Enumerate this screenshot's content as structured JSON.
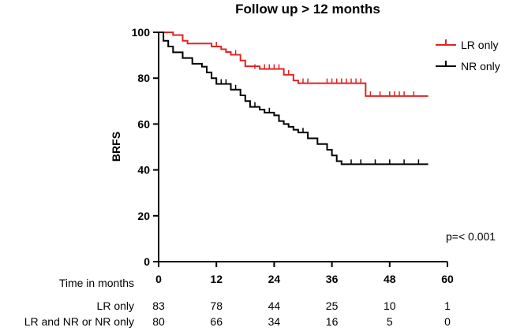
{
  "chart_data": {
    "type": "line",
    "subtype": "kaplan-meier",
    "title": "Follow up > 12 months",
    "xlabel": "Time in months",
    "ylabel": "BRFS",
    "xlim": [
      0,
      60
    ],
    "ylim": [
      0,
      100
    ],
    "xticks": [
      0,
      12,
      24,
      36,
      48,
      60
    ],
    "yticks": [
      0,
      20,
      40,
      60,
      80,
      100
    ],
    "annotation": "p=< 0.001",
    "legend_position": "top-right",
    "series": [
      {
        "name": "LR only",
        "color": "#e02424",
        "steps": [
          [
            0,
            100
          ],
          [
            3,
            98.8
          ],
          [
            5,
            96.3
          ],
          [
            6,
            95.1
          ],
          [
            11,
            93.8
          ],
          [
            13,
            92.6
          ],
          [
            14,
            91.4
          ],
          [
            15,
            90.2
          ],
          [
            17,
            87.7
          ],
          [
            18,
            85.2
          ],
          [
            21,
            84.0
          ],
          [
            26,
            81.5
          ],
          [
            28,
            79.0
          ],
          [
            29,
            77.8
          ],
          [
            43,
            72.2
          ],
          [
            56,
            72.2
          ]
        ],
        "censored": [
          [
            12,
            93.8
          ],
          [
            16,
            90.2
          ],
          [
            20,
            84.0
          ],
          [
            22,
            84.0
          ],
          [
            23,
            84.0
          ],
          [
            24,
            84.0
          ],
          [
            25,
            84.0
          ],
          [
            27,
            81.5
          ],
          [
            30,
            77.8
          ],
          [
            31,
            77.8
          ],
          [
            35,
            77.8
          ],
          [
            36,
            77.8
          ],
          [
            37,
            77.8
          ],
          [
            38,
            77.8
          ],
          [
            39,
            77.8
          ],
          [
            40,
            77.8
          ],
          [
            41,
            77.8
          ],
          [
            42,
            77.8
          ],
          [
            44,
            72.2
          ],
          [
            46,
            72.2
          ],
          [
            48,
            72.2
          ],
          [
            49,
            72.2
          ],
          [
            50,
            72.2
          ],
          [
            51,
            72.2
          ],
          [
            53,
            72.2
          ]
        ]
      },
      {
        "name": "NR only",
        "color": "#000000",
        "steps": [
          [
            0,
            100
          ],
          [
            1,
            96.3
          ],
          [
            2,
            93.8
          ],
          [
            3,
            91.3
          ],
          [
            5,
            88.8
          ],
          [
            7,
            86.3
          ],
          [
            9,
            85.0
          ],
          [
            10,
            82.5
          ],
          [
            11,
            80.0
          ],
          [
            12,
            77.5
          ],
          [
            15,
            75.0
          ],
          [
            17,
            72.5
          ],
          [
            18,
            70.0
          ],
          [
            19,
            67.5
          ],
          [
            21,
            66.3
          ],
          [
            22,
            65.0
          ],
          [
            24,
            63.8
          ],
          [
            25,
            61.3
          ],
          [
            26,
            60.0
          ],
          [
            27,
            58.8
          ],
          [
            28,
            57.5
          ],
          [
            29,
            56.3
          ],
          [
            31,
            53.8
          ],
          [
            33,
            51.3
          ],
          [
            35,
            48.8
          ],
          [
            36,
            46.3
          ],
          [
            37,
            43.8
          ],
          [
            38,
            42.5
          ],
          [
            56,
            42.5
          ]
        ],
        "censored": [
          [
            13,
            77.5
          ],
          [
            14,
            77.5
          ],
          [
            16,
            75.0
          ],
          [
            20,
            67.5
          ],
          [
            23,
            65.0
          ],
          [
            30,
            56.3
          ],
          [
            40,
            42.5
          ],
          [
            42,
            42.5
          ],
          [
            45,
            42.5
          ],
          [
            48,
            42.5
          ],
          [
            51,
            42.5
          ],
          [
            54,
            42.5
          ]
        ]
      }
    ],
    "risk_table": {
      "rows": [
        {
          "label": "LR only",
          "values": [
            "83",
            "78",
            "44",
            "25",
            "10",
            "1"
          ]
        },
        {
          "label": "LR and NR or NR only",
          "values": [
            "80",
            "66",
            "34",
            "16",
            "5",
            "0"
          ]
        }
      ]
    }
  }
}
